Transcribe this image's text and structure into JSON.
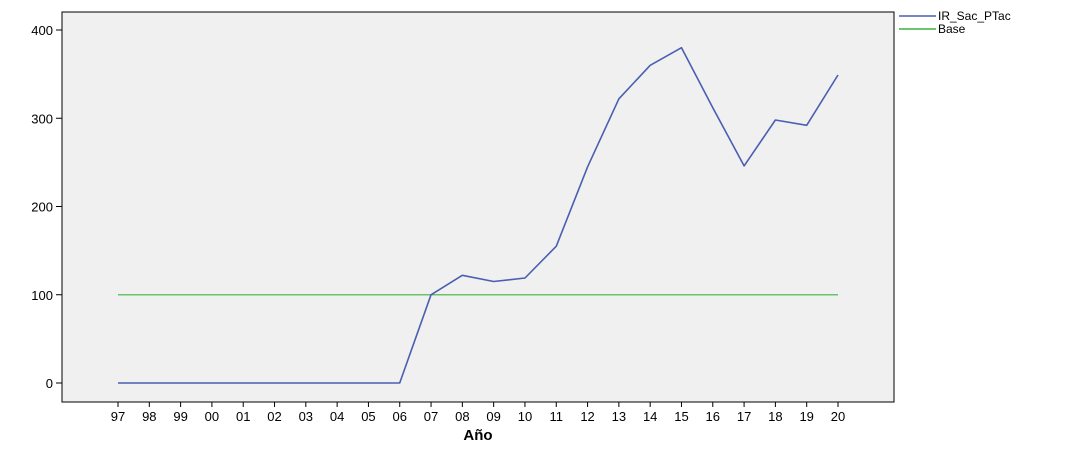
{
  "chart_data": {
    "type": "line",
    "xlabel": "Año",
    "ylabel": "",
    "categories": [
      "97",
      "98",
      "99",
      "00",
      "01",
      "02",
      "03",
      "04",
      "05",
      "06",
      "07",
      "08",
      "09",
      "10",
      "11",
      "12",
      "13",
      "14",
      "15",
      "16",
      "17",
      "18",
      "19",
      "20"
    ],
    "ylim": [
      -20,
      420
    ],
    "yticks": [
      0,
      100,
      200,
      300,
      400
    ],
    "grid": false,
    "legend_position": "top-right",
    "series": [
      {
        "name": "IR_Sac_PTac",
        "color": "#4a5fb0",
        "values": [
          0,
          0,
          0,
          0,
          0,
          0,
          0,
          0,
          0,
          0,
          100,
          122,
          115,
          119,
          155,
          245,
          322,
          360,
          380,
          312,
          246,
          298,
          292,
          349
        ]
      },
      {
        "name": "Base",
        "color": "#3cb43c",
        "values": [
          100,
          100,
          100,
          100,
          100,
          100,
          100,
          100,
          100,
          100,
          100,
          100,
          100,
          100,
          100,
          100,
          100,
          100,
          100,
          100,
          100,
          100,
          100,
          100
        ]
      }
    ],
    "plot_background": "#f0f0f0"
  }
}
